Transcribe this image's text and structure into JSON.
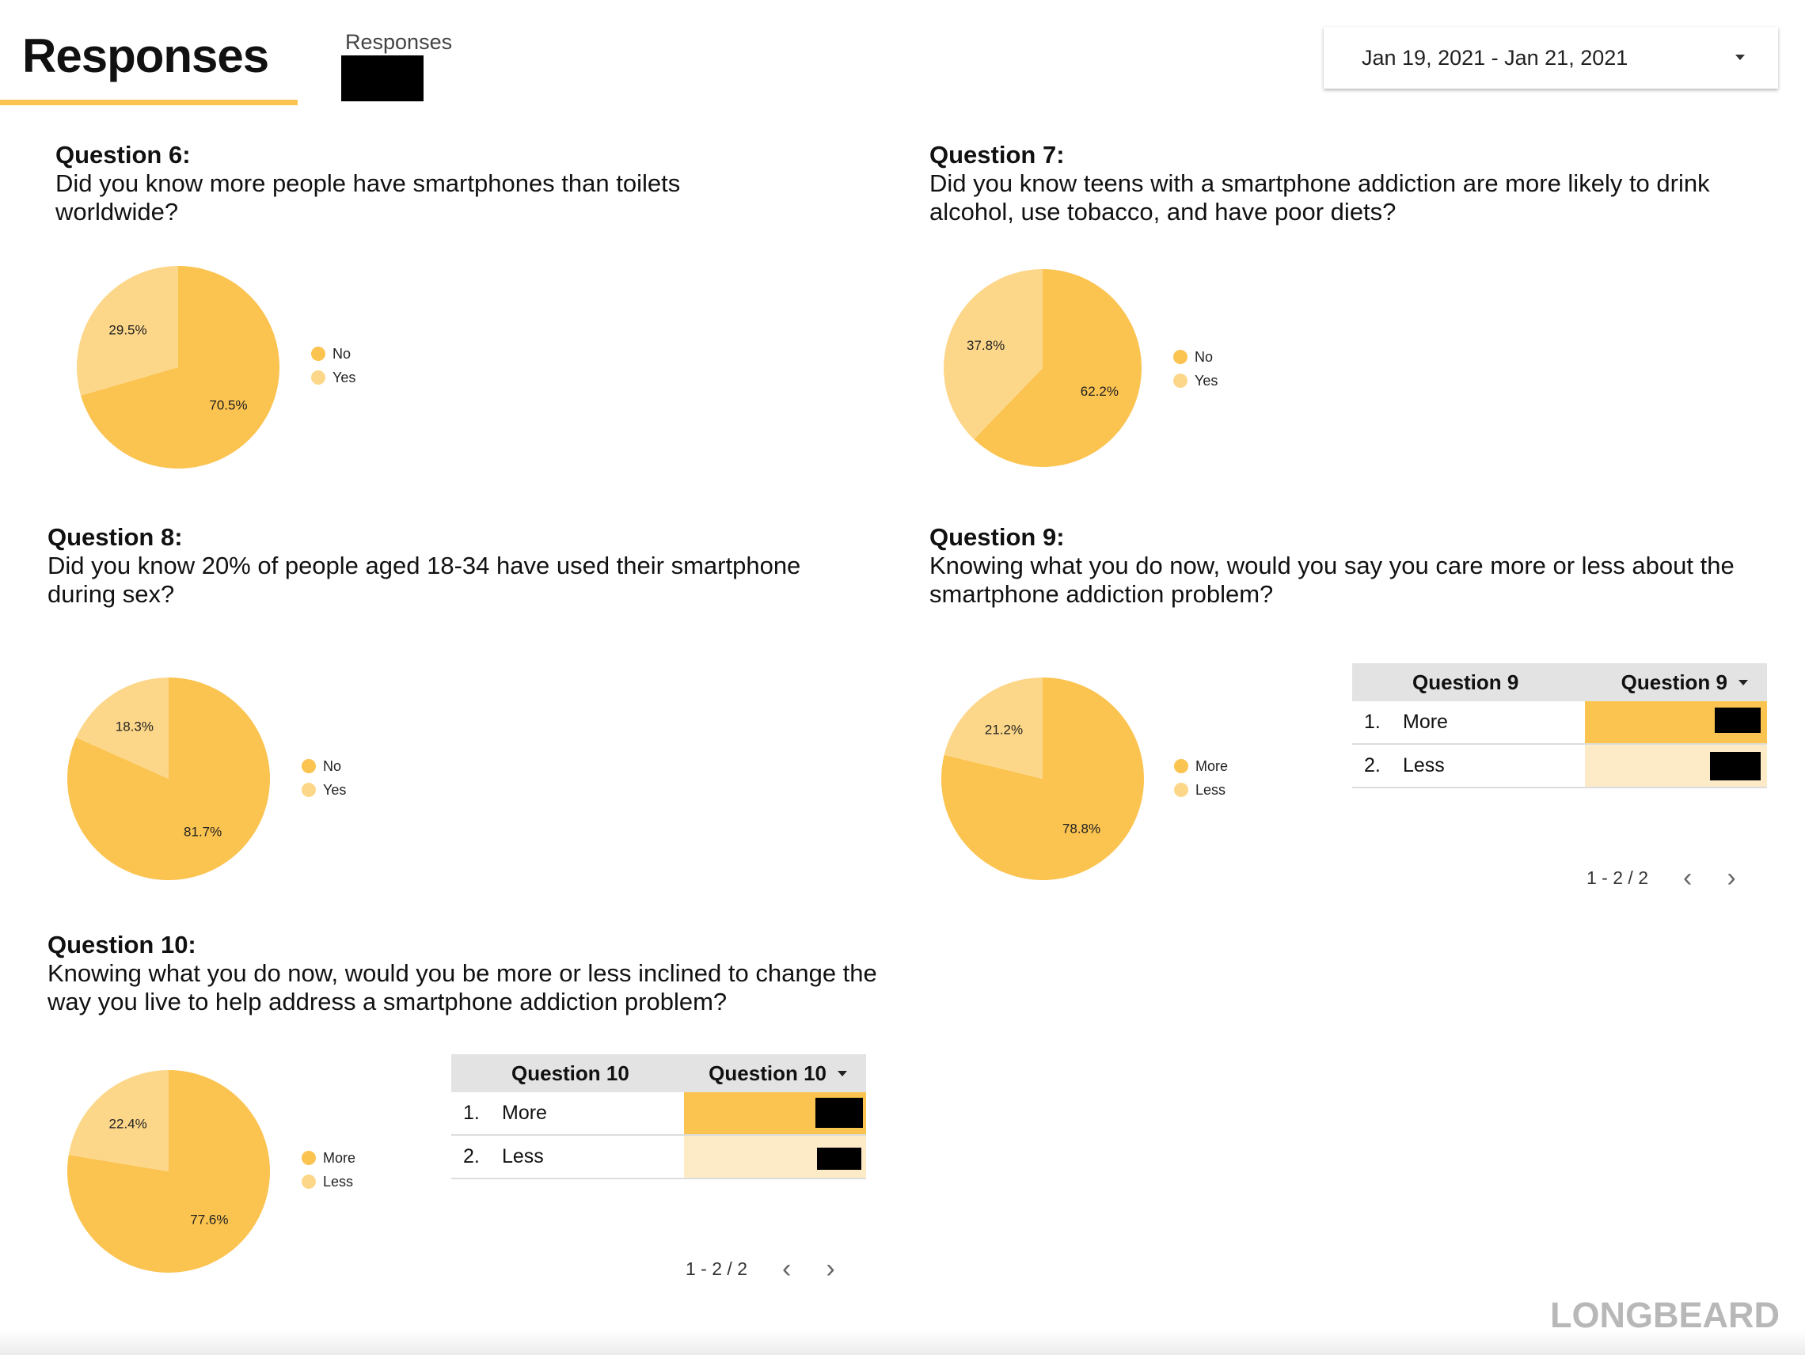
{
  "header": {
    "title": "Responses",
    "responses_label": "Responses",
    "date_range": "Jan 19, 2021 - Jan 21, 2021"
  },
  "questions": [
    {
      "title": "Question 6:",
      "line1": "Did you know more people have smartphones than toilets",
      "line2": "worldwide?"
    },
    {
      "title": "Question 7:",
      "line1": "Did you know teens with a smartphone addiction are more likely to drink",
      "line2": "alcohol, use tobacco, and have poor diets?"
    },
    {
      "title": "Question 8:",
      "line1": "Did you know 20% of people aged 18-34 have used their smartphone",
      "line2": "during sex?"
    },
    {
      "title": "Question 9:",
      "line1": "Knowing what you do now, would you say you care more or less about the",
      "line2": "smartphone addiction problem?"
    },
    {
      "title": "Question 10:",
      "line1": "Knowing what you do now, would you be more or less inclined to change the",
      "line2": "way you live to help address a smartphone addiction problem?"
    }
  ],
  "colors": {
    "primary": "#fbc350",
    "secondary": "#fdd789",
    "table_secondary": "#fdebc8",
    "accent_underline": "#fbc350"
  },
  "chart_data": [
    {
      "type": "pie",
      "categories": [
        "No",
        "Yes"
      ],
      "values": [
        70.5,
        29.5
      ],
      "labels": [
        "70.5%",
        "29.5%"
      ]
    },
    {
      "type": "pie",
      "categories": [
        "No",
        "Yes"
      ],
      "values": [
        62.2,
        37.8
      ],
      "labels": [
        "62.2%",
        "37.8%"
      ]
    },
    {
      "type": "pie",
      "categories": [
        "No",
        "Yes"
      ],
      "values": [
        81.7,
        18.3
      ],
      "labels": [
        "81.7%",
        "18.3%"
      ]
    },
    {
      "type": "pie",
      "categories": [
        "More",
        "Less"
      ],
      "values": [
        78.8,
        21.2
      ],
      "labels": [
        "78.8%",
        "21.2%"
      ]
    },
    {
      "type": "pie",
      "categories": [
        "More",
        "Less"
      ],
      "values": [
        77.6,
        22.4
      ],
      "labels": [
        "77.6%",
        "22.4%"
      ]
    }
  ],
  "tables": {
    "q9": {
      "col1": "Question 9",
      "col2": "Question 9",
      "rows": [
        {
          "index": "1.",
          "label": "More"
        },
        {
          "index": "2.",
          "label": "Less"
        }
      ],
      "pager": "1 - 2 / 2"
    },
    "q10": {
      "col1": "Question 10",
      "col2": "Question 10",
      "rows": [
        {
          "index": "1.",
          "label": "More"
        },
        {
          "index": "2.",
          "label": "Less"
        }
      ],
      "pager": "1 - 2 / 2"
    }
  },
  "icons": {
    "prev": "chevron-left-icon",
    "next": "chevron-right-icon",
    "sort": "caret-down-icon",
    "dropdown": "caret-down-icon"
  },
  "brand": "LONGBEARD"
}
